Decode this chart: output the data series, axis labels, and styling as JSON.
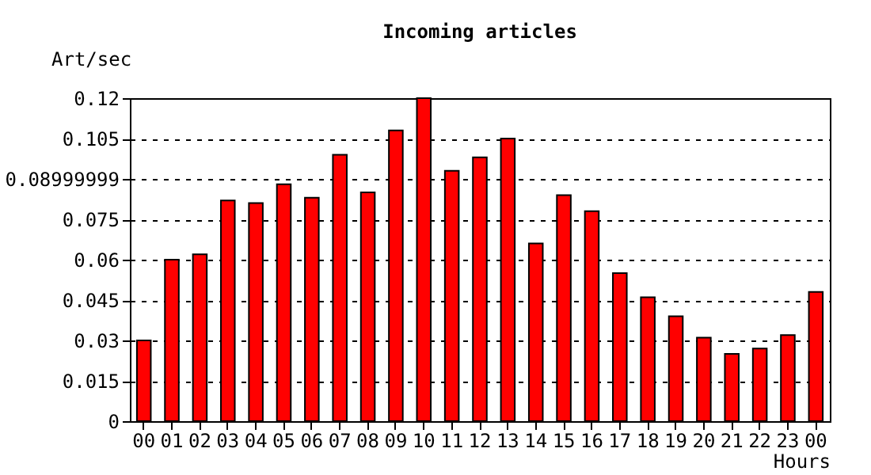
{
  "chart_data": {
    "type": "bar",
    "title": "Incoming articles",
    "ylabel": "Art/sec",
    "xlabel": "Hours",
    "categories": [
      "00",
      "01",
      "02",
      "03",
      "04",
      "05",
      "06",
      "07",
      "08",
      "09",
      "10",
      "11",
      "12",
      "13",
      "14",
      "15",
      "16",
      "17",
      "18",
      "19",
      "20",
      "21",
      "22",
      "23",
      "00"
    ],
    "values": [
      0.03,
      0.06,
      0.062,
      0.082,
      0.081,
      0.088,
      0.083,
      0.099,
      0.085,
      0.108,
      0.12,
      0.093,
      0.098,
      0.105,
      0.066,
      0.084,
      0.078,
      0.055,
      0.046,
      0.039,
      0.031,
      0.025,
      0.027,
      0.032,
      0.048
    ],
    "color": "#ff0000",
    "ylim": [
      0,
      0.12
    ],
    "yticks": [
      0,
      0.015,
      0.03,
      0.045,
      0.06,
      0.075,
      0.08999999,
      0.105,
      0.12
    ],
    "grid": "y"
  }
}
